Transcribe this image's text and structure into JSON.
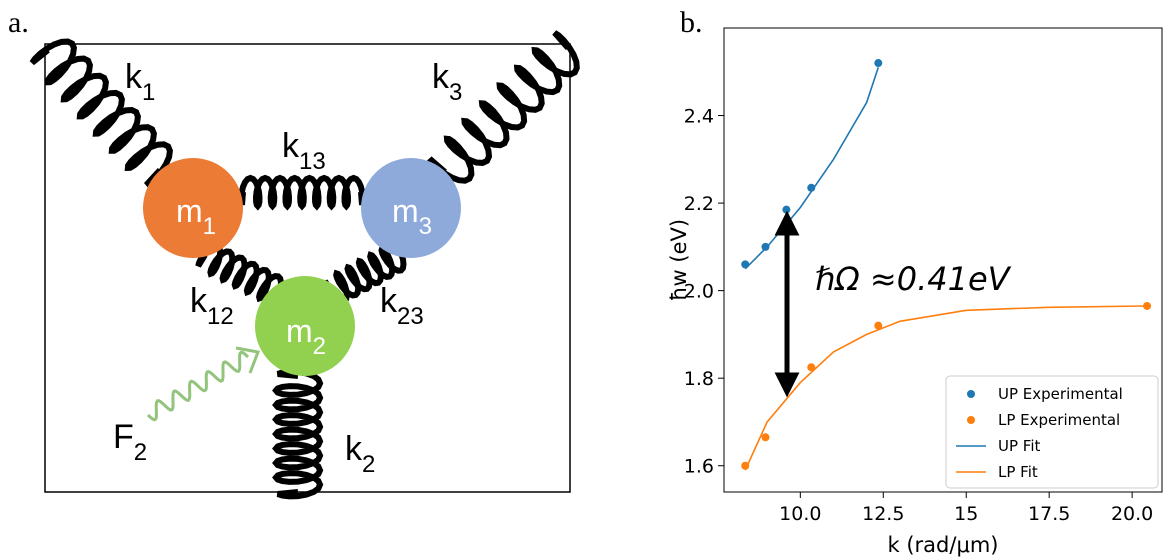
{
  "panel_labels": [
    "a.",
    "b."
  ],
  "diagram": {
    "labels": [
      {
        "symbol": "k",
        "subscript": "1"
      },
      {
        "symbol": "k",
        "subscript": "3"
      },
      {
        "symbol": "k",
        "subscript": "13"
      },
      {
        "symbol": "m",
        "subscript": "1"
      },
      {
        "symbol": "m",
        "subscript": "3"
      },
      {
        "symbol": "k",
        "subscript": "12"
      },
      {
        "symbol": "k",
        "subscript": "23"
      },
      {
        "symbol": "m",
        "subscript": "2"
      },
      {
        "symbol": "F",
        "subscript": "2"
      },
      {
        "symbol": "k",
        "subscript": "2"
      }
    ]
  },
  "chart_data": {
    "type": "scatter-line",
    "x_label": "k (rad/μm)",
    "y_label": "ħw (eV)",
    "annotation": "ℏΩ  ≈0.41eV",
    "xlim": [
      7.7,
      20.9
    ],
    "ylim": [
      1.54,
      2.6
    ],
    "xticks": [
      {
        "value": 10,
        "label": "10.0"
      },
      12.5,
      15,
      17.5,
      {
        "value": 20,
        "label": "20.0"
      }
    ],
    "yticks": [
      1.6,
      1.8,
      {
        "value": 2,
        "label": "2.0"
      },
      2.2,
      2.4
    ],
    "legend": "lower right",
    "series": [
      {
        "name": "UP Experimental",
        "kind": "scatter",
        "color": "#1f77b4",
        "x": [
          8.34,
          8.95,
          9.58,
          10.33,
          12.35
        ],
        "values": [
          2.06,
          2.1,
          2.185,
          2.235,
          2.52
        ]
      },
      {
        "name": "LP Experimental",
        "kind": "scatter",
        "color": "#ff7f0e",
        "x": [
          8.34,
          8.95,
          10.33,
          12.35,
          20.45
        ],
        "values": [
          1.6,
          1.665,
          1.825,
          1.92,
          1.965
        ]
      },
      {
        "name": "UP Fit",
        "kind": "line",
        "color": "#1f77b4",
        "x": [
          8.34,
          9,
          10,
          11,
          12,
          12.35
        ],
        "values": [
          2.05,
          2.1,
          2.19,
          2.3,
          2.43,
          2.51
        ]
      },
      {
        "name": "LP Fit",
        "kind": "line",
        "color": "#ff7f0e",
        "x": [
          8.34,
          9,
          10,
          11,
          12,
          13,
          15,
          17.5,
          20.45
        ],
        "values": [
          1.59,
          1.7,
          1.79,
          1.86,
          1.9,
          1.93,
          1.955,
          1.962,
          1.965
        ]
      }
    ]
  }
}
